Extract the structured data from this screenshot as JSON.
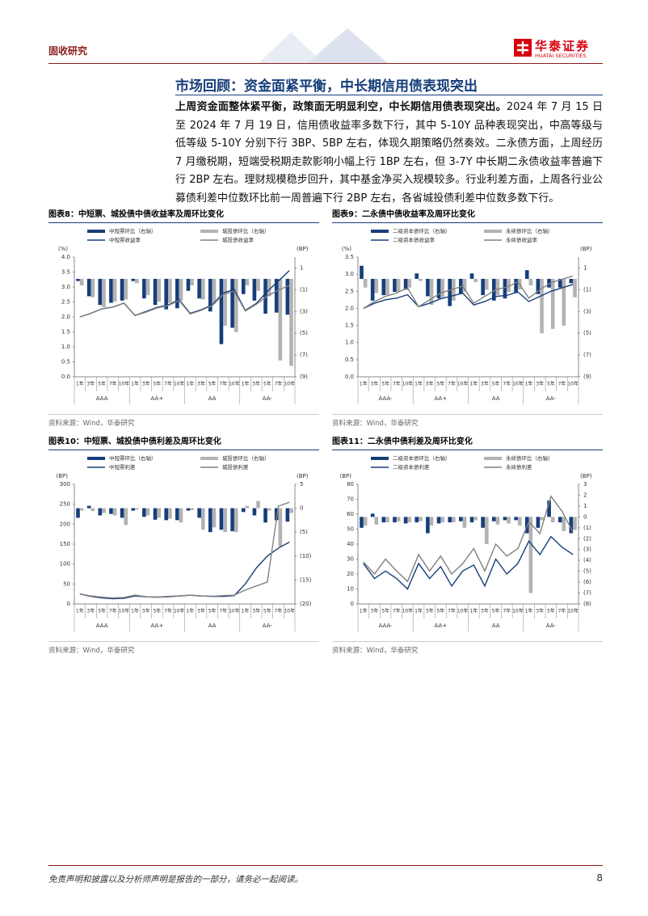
{
  "header": {
    "section": "固收研究",
    "logo_cn": "华泰证券",
    "logo_en": "HUATAI SECURITIES"
  },
  "heading": "市场回顾：资金面紧平衡，中长期信用债表现突出",
  "paragraph": {
    "lead": "上周资金面整体紧平衡，政策面无明显利空，中长期信用债表现突出。",
    "body": "2024 年 7 月 15 日至 2024 年 7 月 19 日，信用债收益率多数下行，其中 5-10Y 品种表现突出，中高等级与低等级 5-10Y 分别下行 3BP、5BP 左右，体现久期策略仍然奏效。二永债方面，上周经历 7 月缴税期，短端受税期走款影响小幅上行 1BP 左右，但 3-7Y 中长期二永债收益率普遍下行 2BP 左右。理财规模稳步回升，其中基金净买入规模较多。行业利差方面，上周各行业公募债利差中位数环比前一周普遍下行 2BP 左右，各省城投债利差中位数多数下行。"
  },
  "chart_data": [
    {
      "type": "combo",
      "title": "图表8：中短票、城投债中债收益率及周环比变化",
      "source": "资料来源：Wind，华泰研究",
      "y_label": "(%)",
      "y2_label": "(BP)",
      "categories": [
        "1年",
        "3年",
        "5年",
        "7年",
        "10年",
        "1年",
        "3年",
        "5年",
        "7年",
        "10年",
        "1年",
        "3年",
        "5年",
        "7年",
        "10年",
        "1年",
        "3年",
        "5年",
        "7年",
        "10年"
      ],
      "groups": [
        "AAA",
        "AA+",
        "AA",
        "AA-"
      ],
      "ylim": [
        0,
        4
      ],
      "yticks": [
        {
          "value": 0,
          "label": "0.0"
        },
        {
          "value": 0.5,
          "label": "0.5"
        },
        {
          "value": 1,
          "label": "1.0"
        },
        {
          "value": 1.5,
          "label": "1.5"
        },
        {
          "value": 2,
          "label": "2.0"
        },
        {
          "value": 2.5,
          "label": "2.5"
        },
        {
          "value": 3,
          "label": "3.0"
        },
        {
          "value": 3.5,
          "label": "3.5"
        },
        {
          "value": 4,
          "label": "4.0"
        }
      ],
      "y2lim": [
        -9,
        2
      ],
      "y2ticks": [
        1,
        {
          "value": -1,
          "label": "(1)"
        },
        {
          "value": -3,
          "label": "(3)"
        },
        {
          "value": -5,
          "label": "(5)"
        },
        {
          "value": -7,
          "label": "(7)"
        },
        {
          "value": -9,
          "label": "(9)"
        }
      ],
      "series": [
        {
          "name": "中短票环比（右轴）",
          "type": "bar",
          "axis": "y2",
          "color": "#163e7a",
          "values": [
            -0.2,
            -1.6,
            -2.4,
            -2.2,
            -2.0,
            -0.2,
            -1.8,
            -2.4,
            -2.8,
            -2.7,
            -1.1,
            -1.8,
            -3.0,
            -6.0,
            -4.5,
            -1.4,
            -2.0,
            -3.2,
            -3.1,
            -3.3
          ]
        },
        {
          "name": "城投债环比（右轴）",
          "type": "bar",
          "axis": "y2",
          "color": "#b3b3b3",
          "values": [
            -0.6,
            -1.7,
            -2.6,
            -2.1,
            -1.9,
            -0.4,
            -1.5,
            -2.1,
            -2.2,
            -2.0,
            -0.6,
            -1.9,
            -2.3,
            -4.3,
            -4.9,
            -0.6,
            -1.1,
            -1.6,
            -7.5,
            -8.0
          ]
        },
        {
          "name": "中短票收益率",
          "type": "line",
          "axis": "y",
          "color": "#163e7a",
          "values": [
            2.0,
            2.12,
            2.27,
            2.33,
            2.46,
            2.05,
            2.18,
            2.32,
            2.4,
            2.58,
            2.12,
            2.24,
            2.4,
            2.8,
            2.92,
            2.22,
            2.45,
            2.85,
            3.2,
            3.55
          ]
        },
        {
          "name": "城投债收益率",
          "type": "line",
          "axis": "y",
          "color": "#808080",
          "values": [
            2.0,
            2.12,
            2.27,
            2.33,
            2.46,
            2.05,
            2.16,
            2.3,
            2.38,
            2.55,
            2.1,
            2.22,
            2.38,
            2.75,
            2.86,
            2.2,
            2.42,
            2.7,
            2.9,
            3.05
          ]
        }
      ]
    },
    {
      "type": "combo",
      "title": "图表9：二永债中债收益率及周环比变化",
      "source": "资料来源：Wind，华泰研究",
      "y_label": "(%)",
      "y2_label": "(BP)",
      "categories": [
        "1年",
        "3年",
        "5年",
        "7年",
        "10年",
        "1年",
        "3年",
        "5年",
        "7年",
        "10年",
        "1年",
        "3年",
        "5年",
        "7年",
        "10年",
        "1年",
        "3年",
        "5年",
        "7年",
        "10年"
      ],
      "groups": [
        "AAA-",
        "AA+",
        "AA",
        "AA-"
      ],
      "ylim": [
        0,
        3.5
      ],
      "yticks": [
        {
          "value": 0,
          "label": "0.0"
        },
        {
          "value": 0.5,
          "label": "0.5"
        },
        {
          "value": 1,
          "label": "1.0"
        },
        {
          "value": 1.5,
          "label": "1.5"
        },
        {
          "value": 2,
          "label": "2.0"
        },
        {
          "value": 2.5,
          "label": "2.5"
        },
        {
          "value": 3,
          "label": "3.0"
        },
        {
          "value": 3.5,
          "label": "3.5"
        }
      ],
      "y2lim": [
        -9,
        2
      ],
      "y2ticks": [
        1,
        {
          "value": -1,
          "label": "(1)"
        },
        {
          "value": -3,
          "label": "(3)"
        },
        {
          "value": -5,
          "label": "(5)"
        },
        {
          "value": -7,
          "label": "(7)"
        },
        {
          "value": -9,
          "label": "(9)"
        }
      ],
      "series": [
        {
          "name": "二级资本债环比（右轴）",
          "type": "bar",
          "axis": "y2",
          "color": "#163e7a",
          "values": [
            1.2,
            -2.0,
            -1.5,
            -1.2,
            -1.0,
            0.5,
            -1.6,
            -1.8,
            -2.5,
            -1.4,
            0.5,
            -1.5,
            -2.0,
            -1.8,
            -1.3,
            0.8,
            -1.4,
            -0.8,
            -0.8,
            -0.4
          ]
        },
        {
          "name": "永续债环比（右轴）",
          "type": "bar",
          "axis": "y2",
          "color": "#b3b3b3",
          "values": [
            -0.8,
            -1.3,
            -1.5,
            -1.2,
            -0.8,
            -0.2,
            -2.4,
            -1.7,
            -2.0,
            -1.2,
            -0.3,
            -1.0,
            -1.5,
            -1.2,
            -1.0,
            -0.6,
            -5.0,
            -4.6,
            -4.3,
            -1.7
          ]
        },
        {
          "name": "二级资本债收益率",
          "type": "line",
          "axis": "y",
          "color": "#163e7a",
          "values": [
            2.0,
            2.15,
            2.25,
            2.3,
            2.4,
            2.05,
            2.15,
            2.28,
            2.36,
            2.45,
            2.1,
            2.2,
            2.35,
            2.38,
            2.48,
            2.2,
            2.35,
            2.5,
            2.6,
            2.7
          ]
        },
        {
          "name": "永续债收益率",
          "type": "line",
          "axis": "y",
          "color": "#808080",
          "values": [
            2.0,
            2.2,
            2.35,
            2.45,
            2.6,
            2.05,
            2.25,
            2.45,
            2.55,
            2.65,
            2.15,
            2.35,
            2.55,
            2.62,
            2.78,
            2.3,
            2.55,
            2.75,
            2.85,
            2.95
          ]
        }
      ]
    },
    {
      "type": "combo",
      "title": "图表10：中短票、城投债中债利差及周环比变化",
      "source": "资料来源：Wind，华泰研究",
      "y_label": "(BP)",
      "y2_label": "(BP)",
      "categories": [
        "1年",
        "3年",
        "5年",
        "7年",
        "10年",
        "1年",
        "3年",
        "5年",
        "7年",
        "10年",
        "1年",
        "3年",
        "5年",
        "7年",
        "10年",
        "1年",
        "3年",
        "5年",
        "7年",
        "10年"
      ],
      "groups": [
        "AAA",
        "AA+",
        "AA",
        "AA-"
      ],
      "ylim": [
        0,
        300
      ],
      "yticks": [
        0,
        50,
        100,
        150,
        200,
        250,
        300
      ],
      "y2lim": [
        -20,
        5
      ],
      "y2ticks": [
        5,
        0,
        {
          "value": -5,
          "label": "(5)"
        },
        {
          "value": -10,
          "label": "(10)"
        },
        {
          "value": -15,
          "label": "(15)"
        },
        {
          "value": -20,
          "label": "(20)"
        }
      ],
      "series": [
        {
          "name": "中短票环比（右轴）",
          "type": "bar",
          "axis": "y2",
          "color": "#163e7a",
          "values": [
            -2.0,
            0.5,
            -1.5,
            -1.2,
            -2.0,
            -0.5,
            -1.8,
            -2.4,
            -2.5,
            -2.5,
            -0.5,
            -2.0,
            -5.0,
            -4.5,
            -4.8,
            -0.8,
            -1.5,
            -3.0,
            -2.5,
            -2.8
          ]
        },
        {
          "name": "城投债环比（右轴）",
          "type": "bar",
          "axis": "y2",
          "color": "#b3b3b3",
          "values": [
            -0.5,
            -0.6,
            -1.0,
            -1.5,
            -3.5,
            -0.3,
            -1.5,
            -2.0,
            -2.2,
            -3.0,
            -0.4,
            -4.5,
            -4.0,
            -5.0,
            -5.0,
            0.5,
            1.5,
            -0.5,
            -8.0,
            -1.0
          ]
        },
        {
          "name": "中短票利差",
          "type": "line",
          "axis": "y",
          "color": "#163e7a",
          "values": [
            25,
            19,
            15,
            13,
            14,
            20,
            18,
            17,
            18,
            20,
            22,
            20,
            19,
            19,
            21,
            50,
            90,
            120,
            140,
            155
          ]
        },
        {
          "name": "城投债利差",
          "type": "line",
          "axis": "y",
          "color": "#808080",
          "values": [
            25,
            20,
            17,
            15,
            16,
            22,
            18,
            17,
            19,
            20,
            22,
            20,
            19,
            21,
            22,
            35,
            45,
            55,
            245,
            255
          ]
        }
      ]
    },
    {
      "type": "combo",
      "title": "图表11：二永债中债利差及周环比变化",
      "source": "资料来源：Wind，华泰研究",
      "y_label": "(BP)",
      "y2_label": "(BP)",
      "categories": [
        "1年",
        "3年",
        "5年",
        "7年",
        "10年",
        "1年",
        "3年",
        "5年",
        "7年",
        "10年",
        "1年",
        "3年",
        "5年",
        "7年",
        "10年",
        "1年",
        "3年",
        "5年",
        "7年",
        "10年"
      ],
      "groups": [
        "AAA-",
        "AA+",
        "AA",
        "AA-"
      ],
      "ylim": [
        0,
        80
      ],
      "yticks": [
        0,
        10,
        20,
        30,
        40,
        50,
        60,
        70,
        80
      ],
      "y2lim": [
        -8,
        3
      ],
      "y2ticks": [
        3,
        2,
        1,
        0,
        {
          "value": -1,
          "label": "(1)"
        },
        {
          "value": -2,
          "label": "(2)"
        },
        {
          "value": -3,
          "label": "(3)"
        },
        {
          "value": -4,
          "label": "(4)"
        },
        {
          "value": -5,
          "label": "(5)"
        },
        {
          "value": -6,
          "label": "(6)"
        },
        {
          "value": -7,
          "label": "(7)"
        },
        {
          "value": -8,
          "label": "(8)"
        }
      ],
      "series": [
        {
          "name": "二级资本债环比（右轴）",
          "type": "bar",
          "axis": "y2",
          "color": "#163e7a",
          "values": [
            -1.0,
            0.3,
            -0.5,
            -0.5,
            -0.6,
            -0.5,
            -1.5,
            -0.6,
            -0.5,
            -0.4,
            -0.5,
            -1.0,
            -0.4,
            -0.3,
            -0.3,
            -1.5,
            -1.0,
            1.5,
            -0.5,
            -1.5
          ]
        },
        {
          "name": "永续债环比（右轴）",
          "type": "bar",
          "axis": "y2",
          "color": "#b3b3b3",
          "values": [
            -0.8,
            -0.7,
            -0.5,
            -0.4,
            -0.5,
            -0.4,
            -0.8,
            -0.5,
            -0.5,
            -1.0,
            -0.3,
            -2.5,
            -0.7,
            -0.6,
            -0.8,
            -7.0,
            -0.3,
            -0.5,
            -1.3,
            -1.2
          ]
        },
        {
          "name": "二级资本债利差",
          "type": "line",
          "axis": "y",
          "color": "#163e7a",
          "values": [
            27,
            17,
            22,
            17,
            10,
            27,
            17,
            25,
            12,
            22,
            26,
            12,
            30,
            20,
            27,
            42,
            33,
            45,
            38,
            33
          ]
        },
        {
          "name": "永续债利差",
          "type": "line",
          "axis": "y",
          "color": "#808080",
          "values": [
            28,
            20,
            30,
            22,
            15,
            33,
            22,
            32,
            20,
            27,
            37,
            22,
            40,
            32,
            37,
            55,
            47,
            72,
            62,
            48
          ]
        }
      ]
    }
  ],
  "footer": {
    "disclaimer": "免责声明和披露以及分析师声明是报告的一部分，请务必一起阅读。",
    "page": "8"
  }
}
